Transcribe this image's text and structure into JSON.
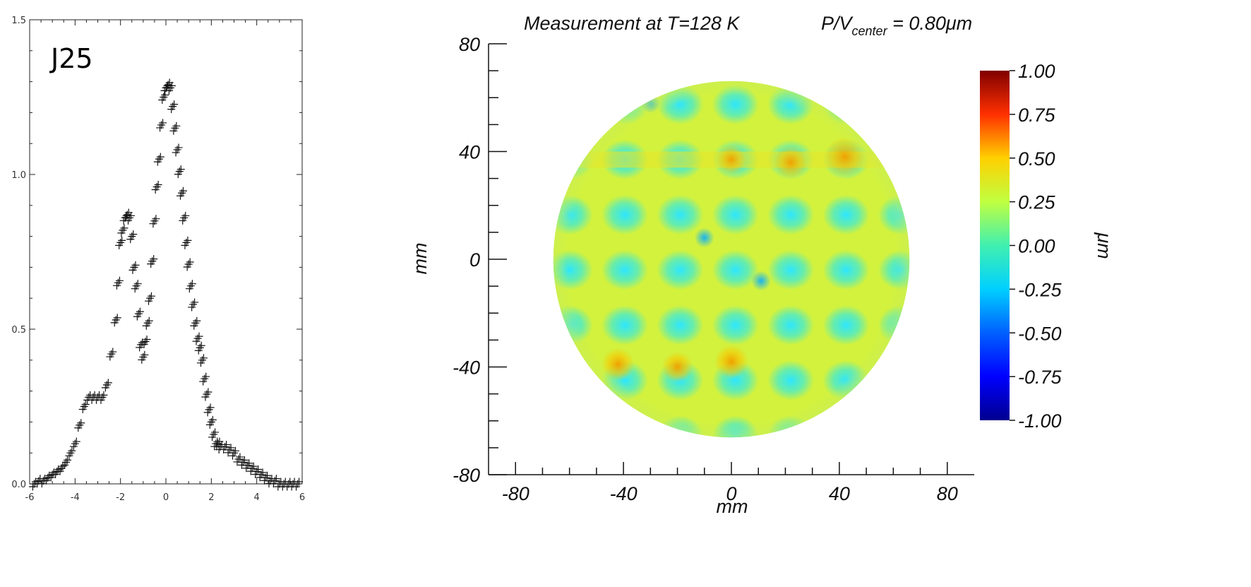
{
  "chart_data": [
    {
      "type": "scatter",
      "title": "",
      "annotation": "J25",
      "marker": "+",
      "xlabel": "",
      "ylabel": "",
      "xlim": [
        -6,
        6
      ],
      "ylim": [
        0,
        1.5
      ],
      "x_ticks": [
        "-6",
        "-4",
        "-2",
        "0",
        "2",
        "4",
        "6"
      ],
      "y_ticks": [
        "0.0",
        "0.5",
        "1.0",
        "1.5"
      ],
      "grid": false,
      "x": [
        -5.8,
        -5.6,
        -5.4,
        -5.2,
        -5.0,
        -4.8,
        -4.6,
        -4.4,
        -4.2,
        -4.0,
        -3.8,
        -3.6,
        -3.4,
        -3.2,
        -3.0,
        -2.8,
        -2.6,
        -2.4,
        -2.2,
        -2.1,
        -2.0,
        -1.9,
        -1.8,
        -1.7,
        -1.6,
        -1.5,
        -1.4,
        -1.3,
        -1.2,
        -1.1,
        -1.0,
        -0.9,
        -0.8,
        -0.7,
        -0.6,
        -0.5,
        -0.4,
        -0.3,
        -0.2,
        -0.1,
        0.0,
        0.1,
        0.2,
        0.3,
        0.4,
        0.5,
        0.6,
        0.7,
        0.8,
        0.9,
        1.0,
        1.1,
        1.2,
        1.3,
        1.4,
        1.5,
        1.6,
        1.7,
        1.8,
        1.9,
        2.0,
        2.1,
        2.2,
        2.3,
        2.4,
        2.6,
        2.8,
        3.0,
        3.2,
        3.4,
        3.6,
        3.8,
        4.0,
        4.2,
        4.4,
        4.6,
        4.8,
        5.0,
        5.2,
        5.4,
        5.6,
        5.8
      ],
      "y": [
        0.0,
        0.01,
        0.01,
        0.02,
        0.03,
        0.04,
        0.05,
        0.07,
        0.1,
        0.13,
        0.19,
        0.25,
        0.28,
        0.28,
        0.28,
        0.28,
        0.32,
        0.42,
        0.53,
        0.65,
        0.78,
        0.82,
        0.86,
        0.87,
        0.86,
        0.8,
        0.7,
        0.64,
        0.55,
        0.45,
        0.41,
        0.46,
        0.52,
        0.6,
        0.72,
        0.85,
        0.96,
        1.05,
        1.16,
        1.25,
        1.28,
        1.29,
        1.28,
        1.22,
        1.15,
        1.08,
        1.01,
        0.94,
        0.86,
        0.78,
        0.71,
        0.64,
        0.58,
        0.52,
        0.47,
        0.44,
        0.4,
        0.34,
        0.29,
        0.24,
        0.2,
        0.16,
        0.13,
        0.13,
        0.12,
        0.12,
        0.11,
        0.1,
        0.08,
        0.07,
        0.06,
        0.05,
        0.04,
        0.03,
        0.02,
        0.01,
        0.01,
        0.0,
        0.0,
        0.0,
        0.0,
        0.0
      ]
    },
    {
      "type": "heatmap",
      "title": "Measurement at T=128 K",
      "subtitle": "P/V",
      "subtitle_sub": "center",
      "subtitle_value": " = 0.80μm",
      "xlabel": "mm",
      "ylabel": "mm",
      "xlim": [
        -90,
        90
      ],
      "ylim": [
        -80,
        80
      ],
      "x_ticks": [
        "-80",
        "-40",
        "0",
        "40",
        "80"
      ],
      "y_ticks": [
        "80",
        "40",
        "0",
        "-40",
        "-80"
      ],
      "aperture_radius_mm": 66,
      "grid_period_mm": 20.5,
      "colorbar": {
        "label": "μm",
        "range": [
          -1.0,
          1.0
        ],
        "ticks": [
          "1.00",
          "0.75",
          "0.50",
          "0.25",
          "0.00",
          "-0.25",
          "-0.50",
          "-0.75",
          "-1.00"
        ]
      },
      "hot_spots": [
        {
          "x": 42,
          "y": 38,
          "value": 0.55
        },
        {
          "x": 22,
          "y": 36,
          "value": 0.38
        },
        {
          "x": 0,
          "y": 37,
          "value": 0.3
        },
        {
          "x": -42,
          "y": -39,
          "value": 0.38
        },
        {
          "x": -20,
          "y": -40,
          "value": 0.33
        },
        {
          "x": 0,
          "y": -38,
          "value": 0.4
        }
      ],
      "cold_spots": [
        {
          "x": 11,
          "y": -8,
          "value": -0.38
        },
        {
          "x": -10,
          "y": 8,
          "value": -0.3
        },
        {
          "x": -30,
          "y": 58,
          "value": -0.22
        }
      ]
    }
  ]
}
